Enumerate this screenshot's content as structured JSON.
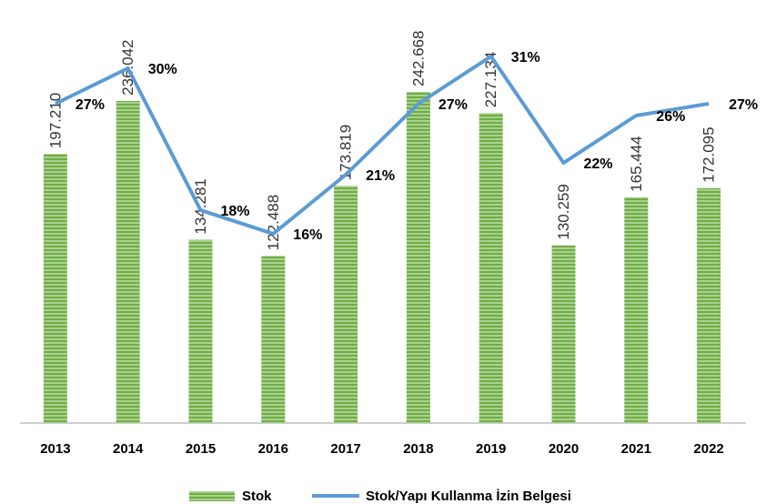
{
  "chart_data": {
    "type": "bar",
    "categories": [
      "2013",
      "2014",
      "2015",
      "2016",
      "2017",
      "2018",
      "2019",
      "2020",
      "2021",
      "2022"
    ],
    "series": [
      {
        "name": "Stok",
        "type": "bar",
        "color": "#70ad47",
        "values": [
          197210,
          236042,
          134281,
          122488,
          173819,
          242668,
          227134,
          130259,
          165444,
          172095
        ],
        "value_labels": [
          "197.210",
          "236.042",
          "134.281",
          "122.488",
          "173.819",
          "242.668",
          "227.134",
          "130.259",
          "165.444",
          "172.095"
        ]
      },
      {
        "name": "Stok/Yapı Kullanma İzin Belgesi",
        "type": "line",
        "axis": "y2",
        "color": "#5b9bd5",
        "values": [
          27,
          30,
          18,
          16,
          21,
          27,
          31,
          22,
          26,
          27
        ],
        "value_labels": [
          "27%",
          "30%",
          "18%",
          "16%",
          "21%",
          "27%",
          "31%",
          "22%",
          "26%",
          "27%"
        ]
      }
    ],
    "ylim": [
      0,
      260000
    ],
    "y2lim": [
      0,
      30
    ],
    "legend": "bottom"
  }
}
